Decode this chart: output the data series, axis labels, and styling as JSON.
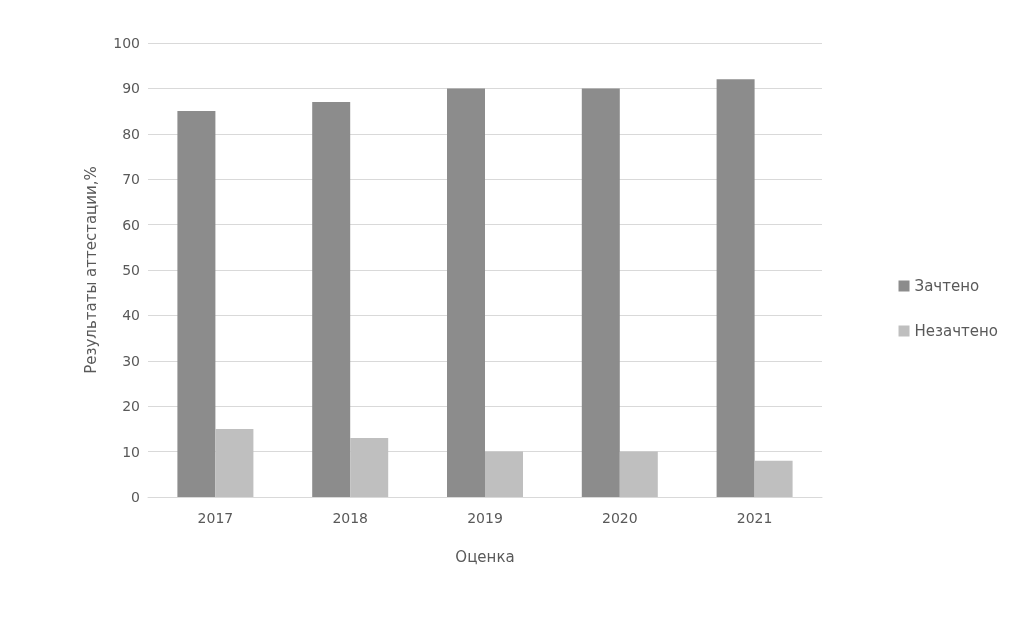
{
  "chart_data": {
    "type": "bar",
    "xlabel": "Оценка",
    "ylabel": "Результаты аттестации,%",
    "categories": [
      "2017",
      "2018",
      "2019",
      "2020",
      "2021"
    ],
    "series": [
      {
        "name": "Зачтено",
        "color": "#8c8c8c",
        "values": [
          85,
          87,
          90,
          90,
          92
        ]
      },
      {
        "name": "Незачтено",
        "color": "#bfbfbf",
        "values": [
          15,
          13,
          10,
          10,
          8
        ]
      }
    ],
    "ylim": [
      0,
      100
    ],
    "yticks": [
      0,
      10,
      20,
      30,
      40,
      50,
      60,
      70,
      80,
      90,
      100
    ],
    "grid": "y",
    "legend": "right"
  }
}
